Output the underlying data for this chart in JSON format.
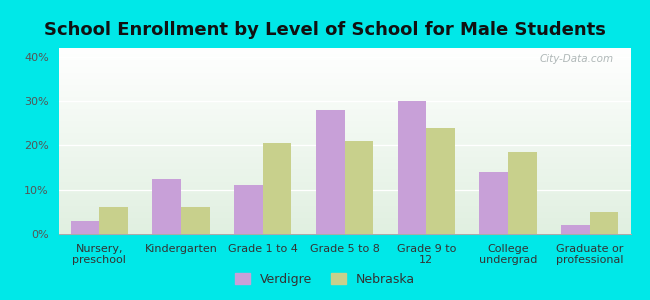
{
  "title": "School Enrollment by Level of School for Male Students",
  "categories": [
    "Nursery,\npreschool",
    "Kindergarten",
    "Grade 1 to 4",
    "Grade 5 to 8",
    "Grade 9 to\n12",
    "College\nundergrad",
    "Graduate or\nprofessional"
  ],
  "verdigre": [
    3.0,
    12.5,
    11.0,
    28.0,
    30.0,
    14.0,
    2.0
  ],
  "nebraska": [
    6.0,
    6.0,
    20.5,
    21.0,
    24.0,
    18.5,
    5.0
  ],
  "verdigre_color": "#c8a0d8",
  "nebraska_color": "#c8d08c",
  "background_outer": "#00e8e8",
  "ylim": [
    0,
    42
  ],
  "yticks": [
    0,
    10,
    20,
    30,
    40
  ],
  "ytick_labels": [
    "0%",
    "10%",
    "20%",
    "30%",
    "40%"
  ],
  "bar_width": 0.35,
  "legend_labels": [
    "Verdigre",
    "Nebraska"
  ],
  "title_fontsize": 13,
  "tick_fontsize": 8,
  "legend_fontsize": 9,
  "watermark": "City-Data.com"
}
